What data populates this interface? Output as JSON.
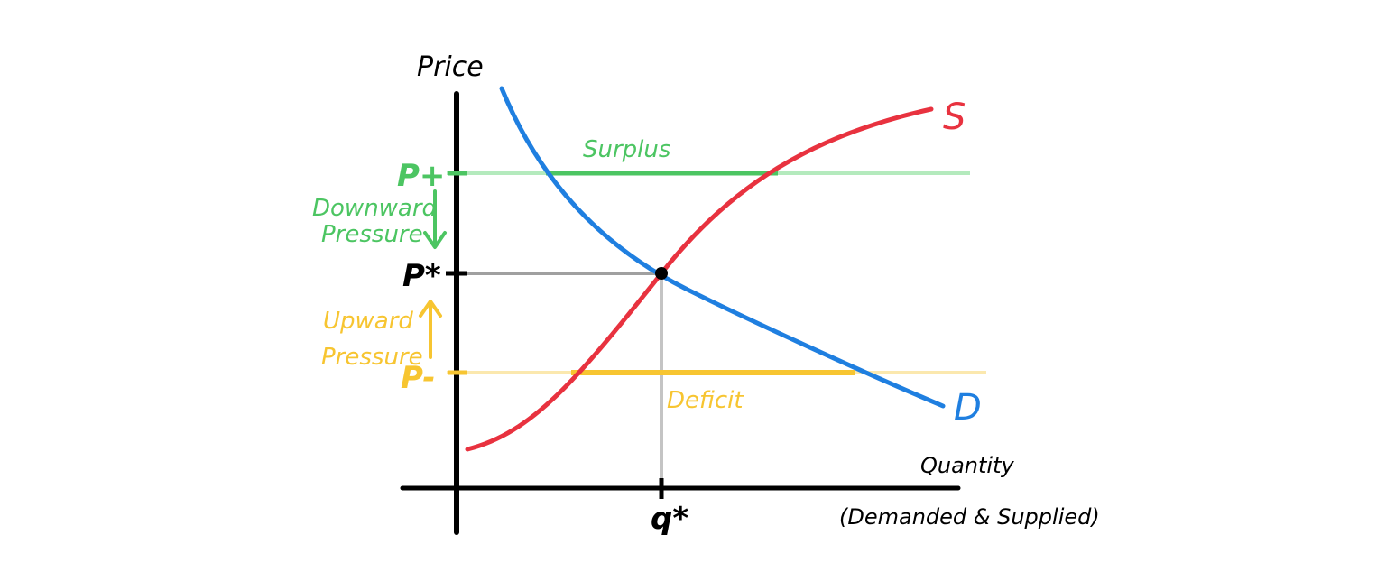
{
  "diagram": {
    "axes": {
      "y_label": "Price",
      "x_label_line1": "Quantity",
      "x_label_line2": "(Demanded & Supplied)"
    },
    "ticks": {
      "p_plus": "P+",
      "p_star": "P*",
      "p_minus": "P-",
      "q_star": "q*"
    },
    "curves": {
      "supply": "S",
      "demand": "D"
    },
    "annotations": {
      "surplus": "Surplus",
      "deficit": "Deficit",
      "downward_line1": "Downward",
      "downward_line2": "Pressure",
      "upward_line1": "Upward",
      "upward_line2": "Pressure"
    },
    "colors": {
      "axis": "#000000",
      "supply": "#e8323f",
      "demand": "#1f7fe0",
      "surplus": "#4cc562",
      "surplus_light": "#b4eabd",
      "deficit": "#f7c531",
      "deficit_light": "#fbe8ae",
      "equilibrium_guide": "#a0a0a0"
    }
  }
}
